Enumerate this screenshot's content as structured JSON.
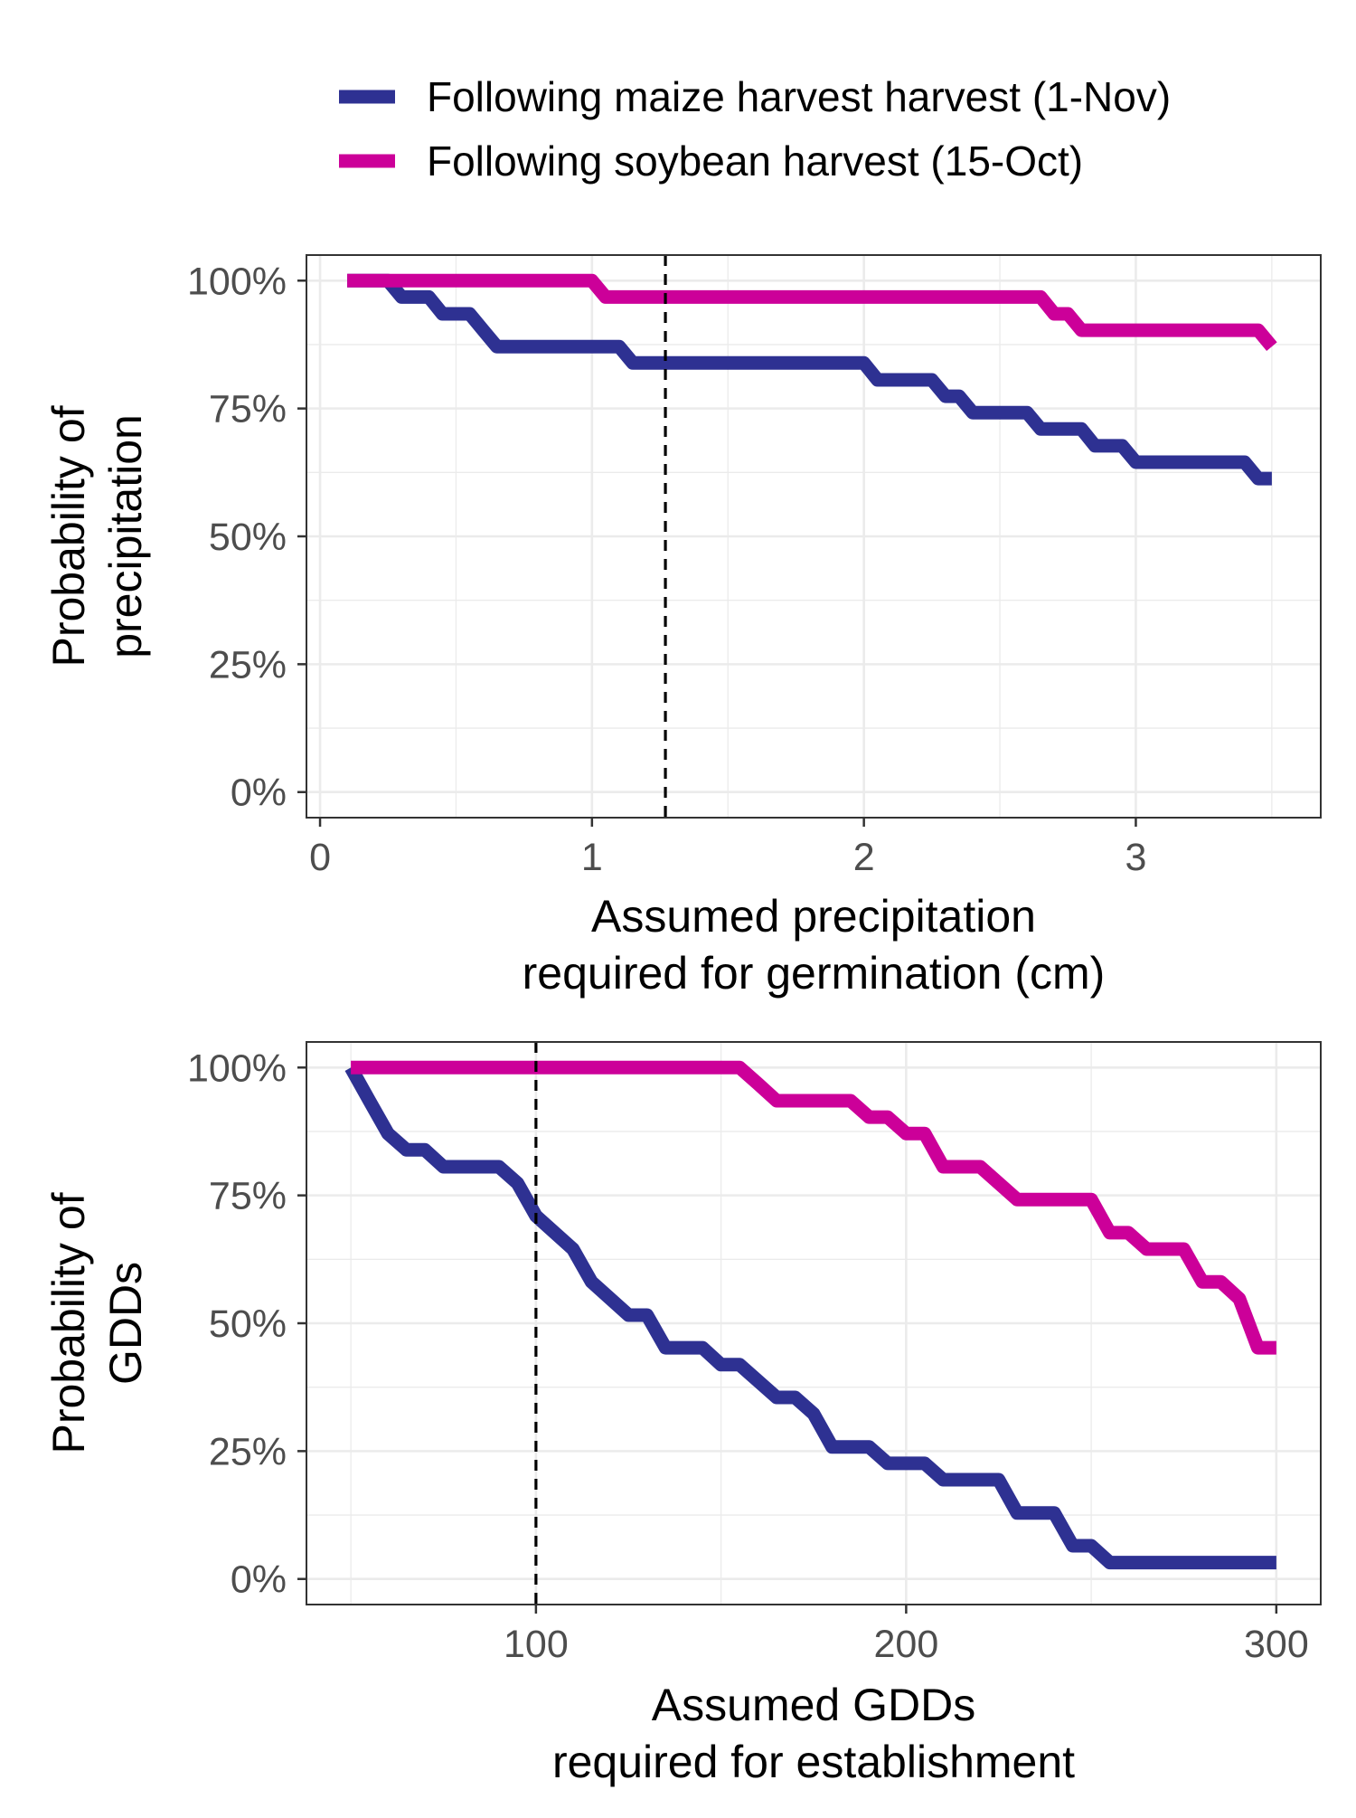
{
  "legend": {
    "position": "top",
    "entries": [
      {
        "label": "Following maize harvest harvest (1-Nov)",
        "color": "#2e3192"
      },
      {
        "label": "Following soybean harvest (15-Oct)",
        "color": "#cc0099"
      }
    ]
  },
  "chart_data": [
    {
      "type": "line",
      "step": true,
      "xlabel": [
        "Assumed precipitation",
        "required for germination (cm)"
      ],
      "ylabel": [
        "Probability of",
        "precipitation"
      ],
      "xlim": [
        -0.05,
        3.68
      ],
      "ylim": [
        -0.05,
        1.05
      ],
      "xticks": [
        0,
        1,
        2,
        3
      ],
      "xtick_labels": [
        "0",
        "1",
        "2",
        "3"
      ],
      "yticks": [
        0,
        0.25,
        0.5,
        0.75,
        1
      ],
      "ytick_labels": [
        "0%",
        "25%",
        "50%",
        "75%",
        "100%"
      ],
      "grid": true,
      "reference_line": {
        "x": 1.27,
        "style": "dashed",
        "color": "#000000"
      },
      "series": [
        {
          "name": "Following maize harvest harvest (1-Nov)",
          "color": "#2e3192",
          "x": [
            0.1,
            0.25,
            0.3,
            0.4,
            0.45,
            0.55,
            0.6,
            0.65,
            1.1,
            1.15,
            2.0,
            2.05,
            2.25,
            2.3,
            2.35,
            2.4,
            2.6,
            2.65,
            2.8,
            2.85,
            2.95,
            3.0,
            3.4,
            3.45,
            3.5
          ],
          "y": [
            1.0,
            1.0,
            0.968,
            0.968,
            0.935,
            0.935,
            0.903,
            0.871,
            0.871,
            0.839,
            0.839,
            0.806,
            0.806,
            0.774,
            0.774,
            0.742,
            0.742,
            0.71,
            0.71,
            0.677,
            0.677,
            0.645,
            0.645,
            0.613,
            0.613
          ]
        },
        {
          "name": "Following soybean harvest (15-Oct)",
          "color": "#cc0099",
          "x": [
            0.1,
            1.0,
            1.05,
            2.65,
            2.7,
            2.75,
            2.8,
            3.45,
            3.5
          ],
          "y": [
            1.0,
            1.0,
            0.968,
            0.968,
            0.935,
            0.935,
            0.903,
            0.903,
            0.871
          ]
        }
      ]
    },
    {
      "type": "line",
      "step": true,
      "xlabel": [
        "Assumed GDDs",
        "required for establishment"
      ],
      "ylabel": [
        "Probability of",
        "GDDs"
      ],
      "xlim": [
        38,
        312
      ],
      "ylim": [
        -0.05,
        1.05
      ],
      "xticks": [
        100,
        200,
        300
      ],
      "xtick_labels": [
        "100",
        "200",
        "300"
      ],
      "yticks": [
        0,
        0.25,
        0.5,
        0.75,
        1
      ],
      "ytick_labels": [
        "0%",
        "25%",
        "50%",
        "75%",
        "100%"
      ],
      "grid": true,
      "reference_line": {
        "x": 100,
        "style": "dashed",
        "color": "#000000"
      },
      "series": [
        {
          "name": "Following maize harvest harvest (1-Nov)",
          "color": "#2e3192",
          "x": [
            50,
            55,
            60,
            65,
            70,
            75,
            80,
            90,
            95,
            100,
            110,
            115,
            125,
            130,
            135,
            145,
            150,
            155,
            160,
            165,
            170,
            175,
            180,
            185,
            190,
            195,
            205,
            210,
            225,
            230,
            240,
            245,
            250,
            255,
            300
          ],
          "y": [
            1.0,
            0.935,
            0.871,
            0.839,
            0.839,
            0.806,
            0.806,
            0.806,
            0.774,
            0.71,
            0.645,
            0.581,
            0.516,
            0.516,
            0.452,
            0.452,
            0.419,
            0.419,
            0.387,
            0.355,
            0.355,
            0.323,
            0.258,
            0.258,
            0.258,
            0.226,
            0.226,
            0.194,
            0.194,
            0.129,
            0.129,
            0.065,
            0.065,
            0.032,
            0.032
          ]
        },
        {
          "name": "Following soybean harvest (15-Oct)",
          "color": "#cc0099",
          "x": [
            50,
            155,
            160,
            165,
            185,
            190,
            195,
            200,
            205,
            210,
            220,
            230,
            250,
            255,
            260,
            265,
            275,
            280,
            285,
            290,
            295,
            300
          ],
          "y": [
            1.0,
            1.0,
            0.968,
            0.935,
            0.935,
            0.903,
            0.903,
            0.871,
            0.871,
            0.806,
            0.806,
            0.742,
            0.742,
            0.677,
            0.677,
            0.645,
            0.645,
            0.581,
            0.581,
            0.548,
            0.452,
            0.452
          ]
        }
      ]
    }
  ]
}
